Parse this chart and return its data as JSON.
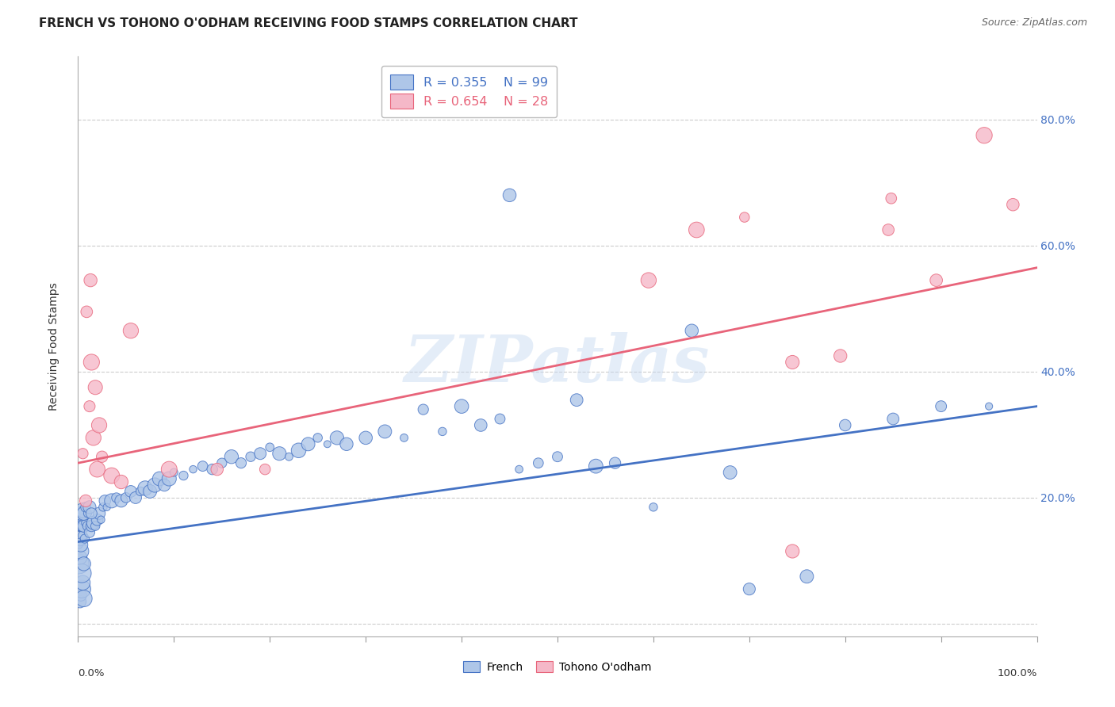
{
  "title": "FRENCH VS TOHONO O'ODHAM RECEIVING FOOD STAMPS CORRELATION CHART",
  "source": "Source: ZipAtlas.com",
  "ylabel": "Receiving Food Stamps",
  "watermark": "ZIPatlas",
  "french_R": 0.355,
  "french_N": 99,
  "tohono_R": 0.654,
  "tohono_N": 28,
  "french_color": "#aec6e8",
  "tohono_color": "#f5b8c8",
  "french_line_color": "#4472c4",
  "tohono_line_color": "#e8647a",
  "french_points": [
    [
      0.002,
      0.035
    ],
    [
      0.003,
      0.045
    ],
    [
      0.004,
      0.055
    ],
    [
      0.005,
      0.065
    ],
    [
      0.006,
      0.04
    ],
    [
      0.001,
      0.095
    ],
    [
      0.002,
      0.105
    ],
    [
      0.003,
      0.115
    ],
    [
      0.004,
      0.08
    ],
    [
      0.006,
      0.095
    ],
    [
      0.001,
      0.125
    ],
    [
      0.002,
      0.135
    ],
    [
      0.003,
      0.125
    ],
    [
      0.005,
      0.14
    ],
    [
      0.007,
      0.135
    ],
    [
      0.001,
      0.155
    ],
    [
      0.002,
      0.155
    ],
    [
      0.003,
      0.16
    ],
    [
      0.004,
      0.155
    ],
    [
      0.005,
      0.165
    ],
    [
      0.006,
      0.155
    ],
    [
      0.008,
      0.16
    ],
    [
      0.01,
      0.155
    ],
    [
      0.012,
      0.145
    ],
    [
      0.014,
      0.155
    ],
    [
      0.016,
      0.16
    ],
    [
      0.018,
      0.155
    ],
    [
      0.02,
      0.165
    ],
    [
      0.022,
      0.175
    ],
    [
      0.024,
      0.165
    ],
    [
      0.001,
      0.175
    ],
    [
      0.002,
      0.175
    ],
    [
      0.003,
      0.18
    ],
    [
      0.004,
      0.175
    ],
    [
      0.005,
      0.18
    ],
    [
      0.006,
      0.175
    ],
    [
      0.008,
      0.185
    ],
    [
      0.01,
      0.175
    ],
    [
      0.012,
      0.185
    ],
    [
      0.014,
      0.175
    ],
    [
      0.026,
      0.185
    ],
    [
      0.028,
      0.195
    ],
    [
      0.03,
      0.185
    ],
    [
      0.035,
      0.195
    ],
    [
      0.04,
      0.2
    ],
    [
      0.045,
      0.195
    ],
    [
      0.05,
      0.2
    ],
    [
      0.055,
      0.21
    ],
    [
      0.06,
      0.2
    ],
    [
      0.065,
      0.21
    ],
    [
      0.07,
      0.215
    ],
    [
      0.075,
      0.21
    ],
    [
      0.08,
      0.22
    ],
    [
      0.085,
      0.23
    ],
    [
      0.09,
      0.22
    ],
    [
      0.095,
      0.23
    ],
    [
      0.1,
      0.24
    ],
    [
      0.11,
      0.235
    ],
    [
      0.12,
      0.245
    ],
    [
      0.13,
      0.25
    ],
    [
      0.14,
      0.245
    ],
    [
      0.15,
      0.255
    ],
    [
      0.16,
      0.265
    ],
    [
      0.17,
      0.255
    ],
    [
      0.18,
      0.265
    ],
    [
      0.19,
      0.27
    ],
    [
      0.2,
      0.28
    ],
    [
      0.21,
      0.27
    ],
    [
      0.22,
      0.265
    ],
    [
      0.23,
      0.275
    ],
    [
      0.24,
      0.285
    ],
    [
      0.25,
      0.295
    ],
    [
      0.26,
      0.285
    ],
    [
      0.27,
      0.295
    ],
    [
      0.28,
      0.285
    ],
    [
      0.3,
      0.295
    ],
    [
      0.32,
      0.305
    ],
    [
      0.34,
      0.295
    ],
    [
      0.36,
      0.34
    ],
    [
      0.38,
      0.305
    ],
    [
      0.4,
      0.345
    ],
    [
      0.42,
      0.315
    ],
    [
      0.44,
      0.325
    ],
    [
      0.46,
      0.245
    ],
    [
      0.48,
      0.255
    ],
    [
      0.5,
      0.265
    ],
    [
      0.45,
      0.68
    ],
    [
      0.52,
      0.355
    ],
    [
      0.54,
      0.25
    ],
    [
      0.56,
      0.255
    ],
    [
      0.6,
      0.185
    ],
    [
      0.64,
      0.465
    ],
    [
      0.68,
      0.24
    ],
    [
      0.7,
      0.055
    ],
    [
      0.76,
      0.075
    ],
    [
      0.8,
      0.315
    ],
    [
      0.85,
      0.325
    ],
    [
      0.9,
      0.345
    ],
    [
      0.95,
      0.345
    ]
  ],
  "tohono_points": [
    [
      0.005,
      0.27
    ],
    [
      0.008,
      0.195
    ],
    [
      0.012,
      0.345
    ],
    [
      0.014,
      0.415
    ],
    [
      0.016,
      0.295
    ],
    [
      0.018,
      0.375
    ],
    [
      0.02,
      0.245
    ],
    [
      0.022,
      0.315
    ],
    [
      0.025,
      0.265
    ],
    [
      0.035,
      0.235
    ],
    [
      0.045,
      0.225
    ],
    [
      0.055,
      0.465
    ],
    [
      0.095,
      0.245
    ],
    [
      0.145,
      0.245
    ],
    [
      0.195,
      0.245
    ],
    [
      0.009,
      0.495
    ],
    [
      0.013,
      0.545
    ],
    [
      0.595,
      0.545
    ],
    [
      0.645,
      0.625
    ],
    [
      0.695,
      0.645
    ],
    [
      0.745,
      0.415
    ],
    [
      0.795,
      0.425
    ],
    [
      0.845,
      0.625
    ],
    [
      0.848,
      0.675
    ],
    [
      0.895,
      0.545
    ],
    [
      0.945,
      0.775
    ],
    [
      0.975,
      0.665
    ],
    [
      0.745,
      0.115
    ]
  ],
  "french_line": [
    [
      0.0,
      0.13
    ],
    [
      1.0,
      0.345
    ]
  ],
  "tohono_line": [
    [
      0.0,
      0.255
    ],
    [
      1.0,
      0.565
    ]
  ],
  "xlim": [
    0.0,
    1.0
  ],
  "ylim": [
    -0.02,
    0.9
  ],
  "yticks": [
    0.0,
    0.2,
    0.4,
    0.6,
    0.8
  ],
  "ytick_labels": [
    "",
    "20.0%",
    "40.0%",
    "60.0%",
    "80.0%"
  ],
  "background_color": "#ffffff",
  "grid_color": "#cccccc"
}
